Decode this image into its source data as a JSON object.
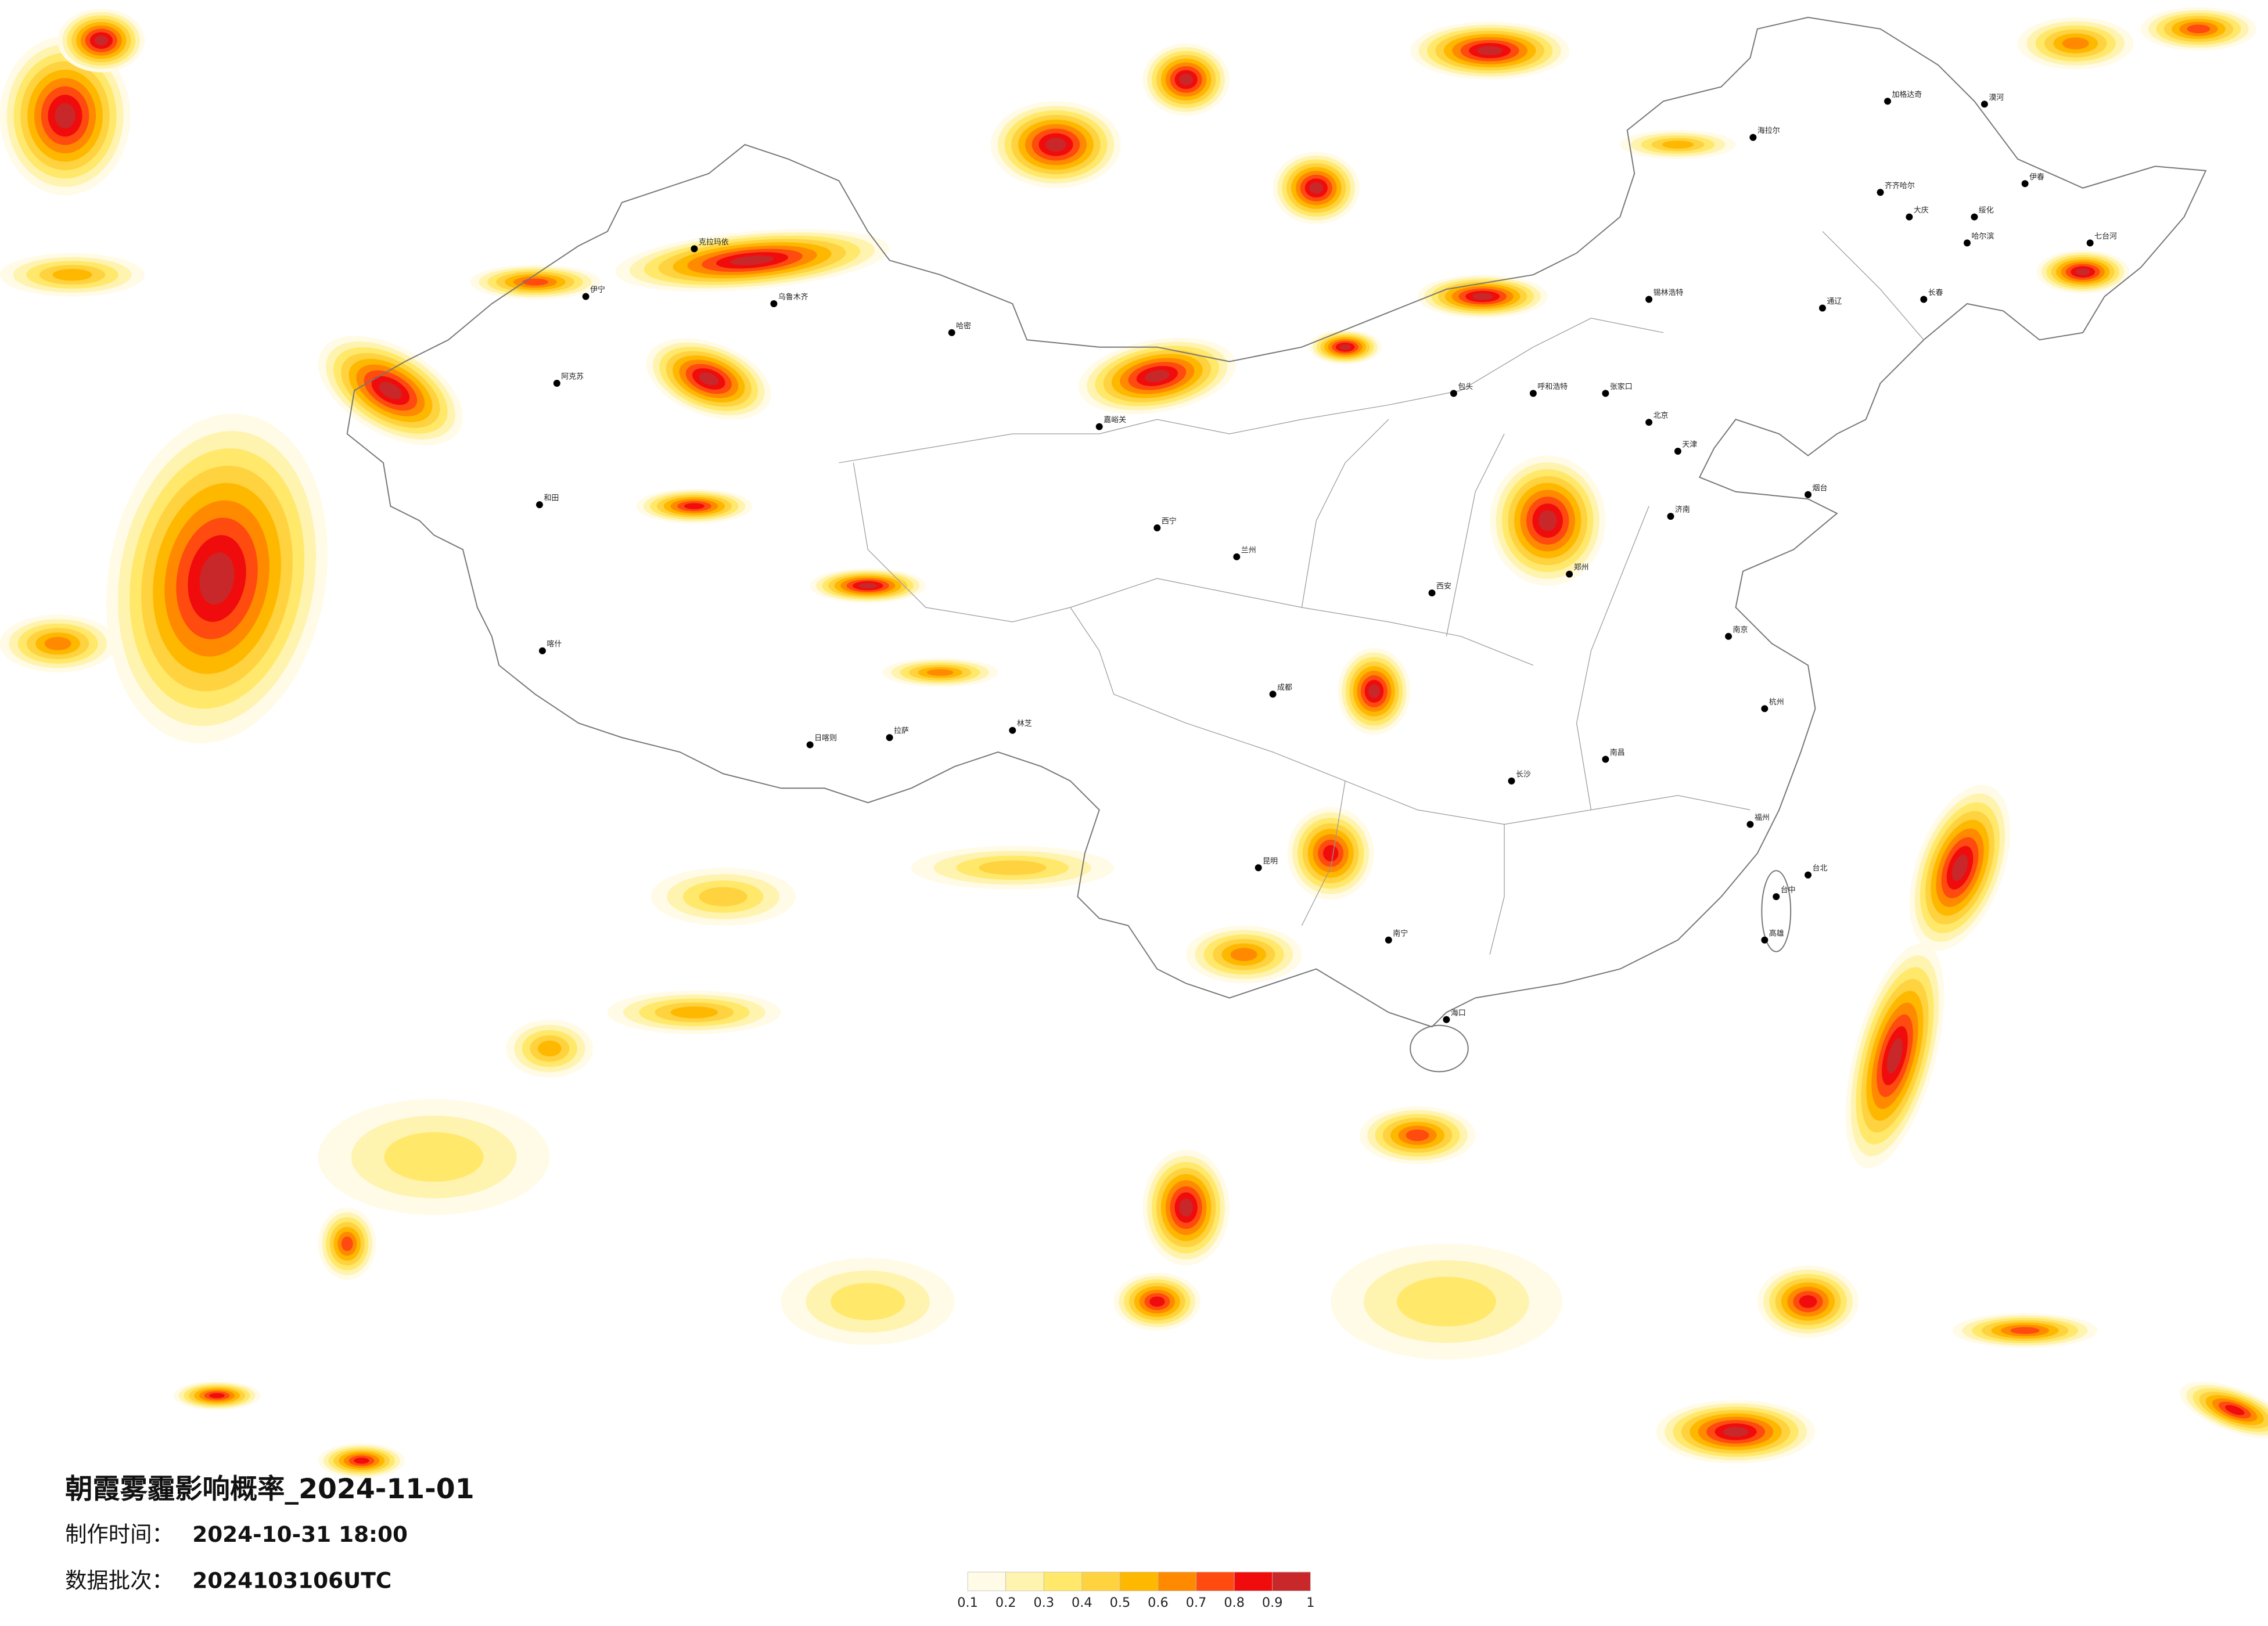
{
  "title": "朝霞雾霾影响概率_2024-11-01",
  "production_time": {
    "label": "制作时间：",
    "value": "2024-10-31 18:00"
  },
  "batch": {
    "label": "数据批次：",
    "value": "2024103106UTC"
  },
  "legend": {
    "colors": [
      "#fffbe6",
      "#fff3b0",
      "#ffe86a",
      "#ffd23f",
      "#ffb800",
      "#ff8a00",
      "#ff4a10",
      "#f00c0c",
      "#c8282a"
    ],
    "ticks": [
      0.1,
      0.2,
      0.3,
      0.4,
      0.5,
      0.6,
      0.7,
      0.8,
      0.9,
      1
    ]
  },
  "cities": [
    "漠河",
    "加格达奇",
    "海拉尔",
    "伊春",
    "齐齐哈尔",
    "大庆",
    "绥化",
    "哈尔滨",
    "七台河",
    "长春",
    "通辽",
    "锡林浩特",
    "呼和浩特",
    "包头",
    "张家口",
    "北京",
    "天津",
    "济南",
    "烟台",
    "郑州",
    "南京",
    "杭州",
    "南昌",
    "长沙",
    "福州",
    "南宁",
    "海口",
    "昆明",
    "成都",
    "西安",
    "兰州",
    "西宁",
    "拉萨",
    "日喀则",
    "林芝",
    "喀什",
    "和田",
    "阿克苏",
    "乌鲁木齐",
    "克拉玛依",
    "伊宁",
    "哈密",
    "嘉峪关",
    "台北",
    "台中",
    "高雄"
  ]
}
